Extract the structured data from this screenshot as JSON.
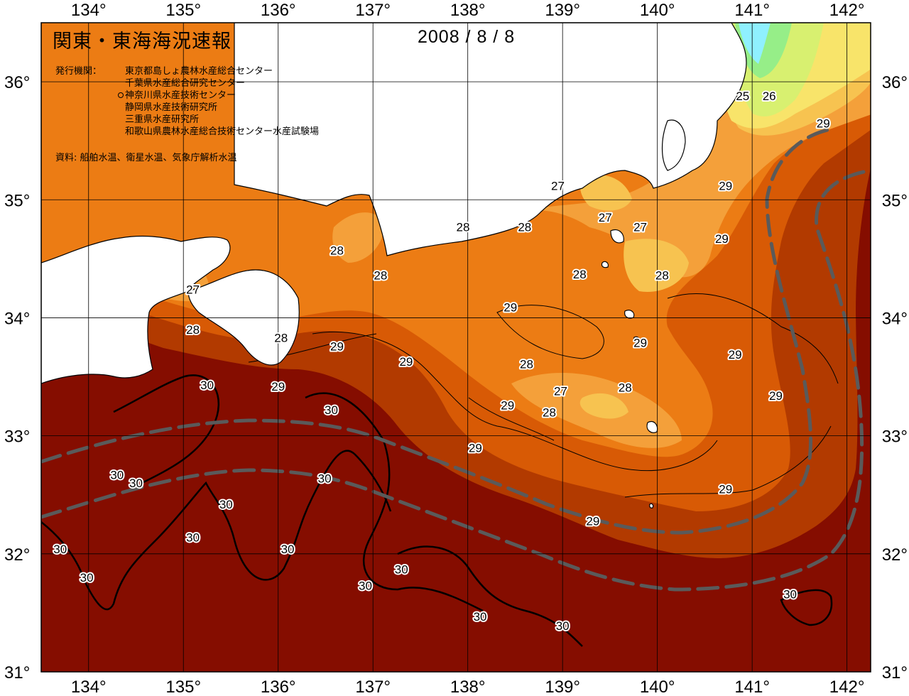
{
  "title": "関東・東海海況速報",
  "date": "2008 / 8 / 8",
  "issuer_label": "発行機関：",
  "issuers": [
    "東京都島しょ農林水産総合センター",
    "千葉県水産総合研究センター",
    "神奈川県水産技術センター",
    "静岡県水産技術研究所",
    "三重県水産研究所",
    "和歌山県農林水産総合技術センター水産試験場"
  ],
  "source_label": "資料: 船舶水温、衛星水温、気象庁解析水温",
  "map": {
    "lon_range": [
      133.5,
      142.25
    ],
    "lat_range": [
      31,
      36.5
    ],
    "lon_ticks": [
      "134°",
      "135°",
      "136°",
      "137°",
      "138°",
      "139°",
      "140°",
      "141°",
      "142°"
    ],
    "lat_ticks": [
      "31°",
      "32°",
      "33°",
      "34°",
      "35°",
      "36°"
    ],
    "colors": {
      "sst_30": "#850d00",
      "sst_29": "#b23a00",
      "sst_28_5": "#d85a05",
      "sst_28": "#ec7c14",
      "sst_27_5": "#f4a03a",
      "sst_27": "#f7c350",
      "sst_26": "#f8e46a",
      "sst_25": "#d8f070",
      "sst_24": "#96ee88",
      "sst_23": "#8ff0ff",
      "land": "#ffffff",
      "kuroshio_axis": "#5a5a5a"
    },
    "temp_labels": [
      {
        "text": "25",
        "lon": 140.9,
        "lat": 35.88
      },
      {
        "text": "26",
        "lon": 141.18,
        "lat": 35.88
      },
      {
        "text": "29",
        "lon": 141.75,
        "lat": 35.65
      },
      {
        "text": "27",
        "lon": 138.95,
        "lat": 35.12
      },
      {
        "text": "29",
        "lon": 140.72,
        "lat": 35.12
      },
      {
        "text": "27",
        "lon": 139.45,
        "lat": 34.85
      },
      {
        "text": "27",
        "lon": 139.82,
        "lat": 34.77
      },
      {
        "text": "28",
        "lon": 137.95,
        "lat": 34.77
      },
      {
        "text": "28",
        "lon": 138.6,
        "lat": 34.77
      },
      {
        "text": "29",
        "lon": 140.68,
        "lat": 34.67
      },
      {
        "text": "28",
        "lon": 136.62,
        "lat": 34.57
      },
      {
        "text": "28",
        "lon": 137.08,
        "lat": 34.36
      },
      {
        "text": "28",
        "lon": 139.18,
        "lat": 34.37
      },
      {
        "text": "28",
        "lon": 140.05,
        "lat": 34.36
      },
      {
        "text": "27",
        "lon": 135.1,
        "lat": 34.24
      },
      {
        "text": "29",
        "lon": 138.45,
        "lat": 34.09
      },
      {
        "text": "28",
        "lon": 135.1,
        "lat": 33.9
      },
      {
        "text": "28",
        "lon": 136.03,
        "lat": 33.83
      },
      {
        "text": "29",
        "lon": 136.62,
        "lat": 33.76
      },
      {
        "text": "29",
        "lon": 139.82,
        "lat": 33.79
      },
      {
        "text": "29",
        "lon": 137.35,
        "lat": 33.63
      },
      {
        "text": "28",
        "lon": 138.62,
        "lat": 33.61
      },
      {
        "text": "29",
        "lon": 140.82,
        "lat": 33.69
      },
      {
        "text": "30",
        "lon": 135.25,
        "lat": 33.43
      },
      {
        "text": "29",
        "lon": 136,
        "lat": 33.42
      },
      {
        "text": "27",
        "lon": 138.98,
        "lat": 33.38
      },
      {
        "text": "28",
        "lon": 139.66,
        "lat": 33.41
      },
      {
        "text": "29",
        "lon": 141.25,
        "lat": 33.34
      },
      {
        "text": "30",
        "lon": 136.56,
        "lat": 33.22
      },
      {
        "text": "29",
        "lon": 138.42,
        "lat": 33.26
      },
      {
        "text": "28",
        "lon": 138.86,
        "lat": 33.2
      },
      {
        "text": "29",
        "lon": 138.08,
        "lat": 32.9
      },
      {
        "text": "30",
        "lon": 134.3,
        "lat": 32.67
      },
      {
        "text": "30",
        "lon": 134.5,
        "lat": 32.6
      },
      {
        "text": "30",
        "lon": 136.49,
        "lat": 32.64
      },
      {
        "text": "29",
        "lon": 140.72,
        "lat": 32.55
      },
      {
        "text": "30",
        "lon": 135.45,
        "lat": 32.42
      },
      {
        "text": "29",
        "lon": 139.32,
        "lat": 32.28
      },
      {
        "text": "30",
        "lon": 135.1,
        "lat": 32.14
      },
      {
        "text": "30",
        "lon": 133.7,
        "lat": 32.04
      },
      {
        "text": "30",
        "lon": 136.1,
        "lat": 32.04
      },
      {
        "text": "30",
        "lon": 137.3,
        "lat": 31.87
      },
      {
        "text": "30",
        "lon": 133.98,
        "lat": 31.8
      },
      {
        "text": "30",
        "lon": 136.92,
        "lat": 31.73
      },
      {
        "text": "30",
        "lon": 141.4,
        "lat": 31.66
      },
      {
        "text": "30",
        "lon": 138.13,
        "lat": 31.47
      },
      {
        "text": "30",
        "lon": 139.0,
        "lat": 31.39
      }
    ]
  }
}
